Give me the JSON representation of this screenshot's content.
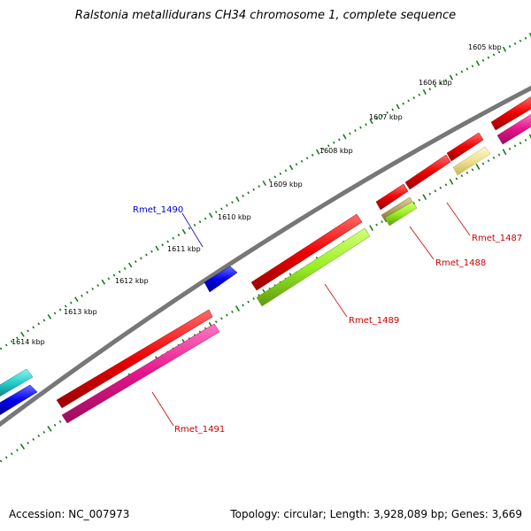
{
  "title": "Ralstonia metallidurans CH34 chromosome 1, complete sequence",
  "footer": {
    "accession": "Accession: NC_007973",
    "summary": "Topology: circular; Length: 3,928,089 bp; Genes: 3,669"
  },
  "scale_labels": [
    {
      "id": "1605",
      "text": "1605 kbp"
    },
    {
      "id": "1606",
      "text": "1606 kbp"
    },
    {
      "id": "1607",
      "text": "1607 kbp"
    },
    {
      "id": "1608",
      "text": "1608 kbp"
    },
    {
      "id": "1609",
      "text": "1609 kbp"
    },
    {
      "id": "1610",
      "text": "1610 kbp"
    },
    {
      "id": "1611",
      "text": "1611 kbp"
    },
    {
      "id": "1612",
      "text": "1612 kbp"
    },
    {
      "id": "1613",
      "text": "1613 kbp"
    },
    {
      "id": "1614",
      "text": "1614 kbp"
    }
  ],
  "gene_labels": [
    {
      "id": "rmet_1490",
      "text": "Rmet_1490",
      "color": "#0000cc"
    },
    {
      "id": "rmet_1487",
      "text": "Rmet_1487",
      "color": "#cc0000"
    },
    {
      "id": "rmet_1488",
      "text": "Rmet_1488",
      "color": "#cc0000"
    },
    {
      "id": "rmet_1489",
      "text": "Rmet_1489",
      "color": "#cc0000"
    },
    {
      "id": "rmet_1491",
      "text": "Rmet_1491",
      "color": "#cc0000"
    }
  ],
  "colors": {
    "backbone": "#777777",
    "tick": "#1a7a1a",
    "cds_forward": "#ee0000",
    "cds_reverse": "#e6148c",
    "cds_green": "#99ee22",
    "cds_tan": "#b5a060",
    "cds_pale": "#f0e090",
    "cds_cyan": "#22cccc",
    "cds_blue": "#0000ee"
  }
}
